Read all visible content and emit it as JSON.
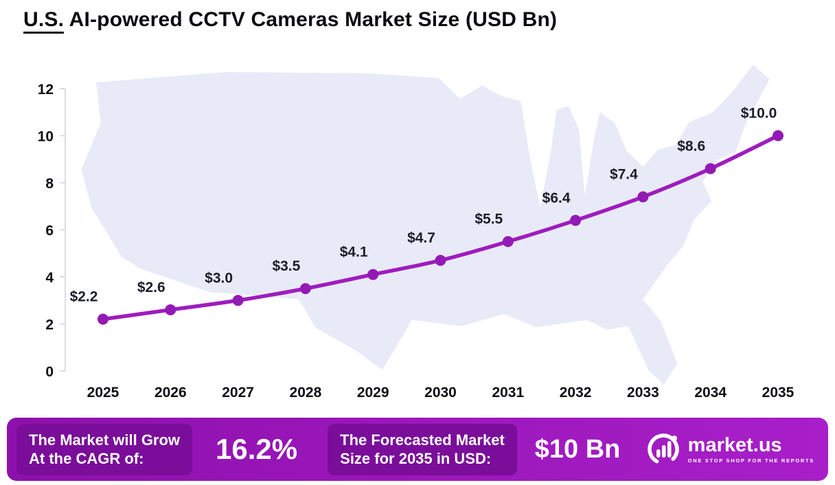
{
  "page": {
    "title_prefix": "U.S.",
    "title_rest": " AI-powered CCTV Cameras Market Size (USD Bn)"
  },
  "chart_data": {
    "type": "line",
    "title": "U.S. AI-powered CCTV Cameras Market Size (USD Bn)",
    "categories": [
      "2025",
      "2026",
      "2027",
      "2028",
      "2029",
      "2030",
      "2031",
      "2032",
      "2033",
      "2034",
      "2035"
    ],
    "values": [
      2.2,
      2.6,
      3.0,
      3.5,
      4.1,
      4.7,
      5.5,
      6.4,
      7.4,
      8.6,
      10.0
    ],
    "point_labels": [
      "$2.2",
      "$2.6",
      "$3.0",
      "$3.5",
      "$4.1",
      "$4.7",
      "$5.5",
      "$6.4",
      "$7.4",
      "$8.6",
      "$10.0"
    ],
    "ylim": [
      0,
      12
    ],
    "yticks": [
      0,
      2,
      4,
      6,
      8,
      10,
      12
    ],
    "grid": false,
    "legend": "none",
    "background_watermark": "us-map-silhouette"
  },
  "footer": {
    "cagr_label_line1": "The Market will Grow",
    "cagr_label_line2": "At the CAGR of:",
    "cagr_value": "16.2%",
    "forecast_label_line1": "The Forecasted Market",
    "forecast_label_line2": "Size for 2035 in USD:",
    "forecast_value": "$10 Bn",
    "brand_name": "market.us",
    "brand_tagline": "ONE STOP SHOP FOR THE REPORTS"
  },
  "colors": {
    "line": "#9E1CBE",
    "marker": "#931AB4",
    "banner_gradient_start": "#8E10AC",
    "banner_gradient_end": "#A81FC9",
    "highlight_box": "#7A0D99",
    "map_fill": "#E8EBF7",
    "axis": "#DCDCE8"
  }
}
